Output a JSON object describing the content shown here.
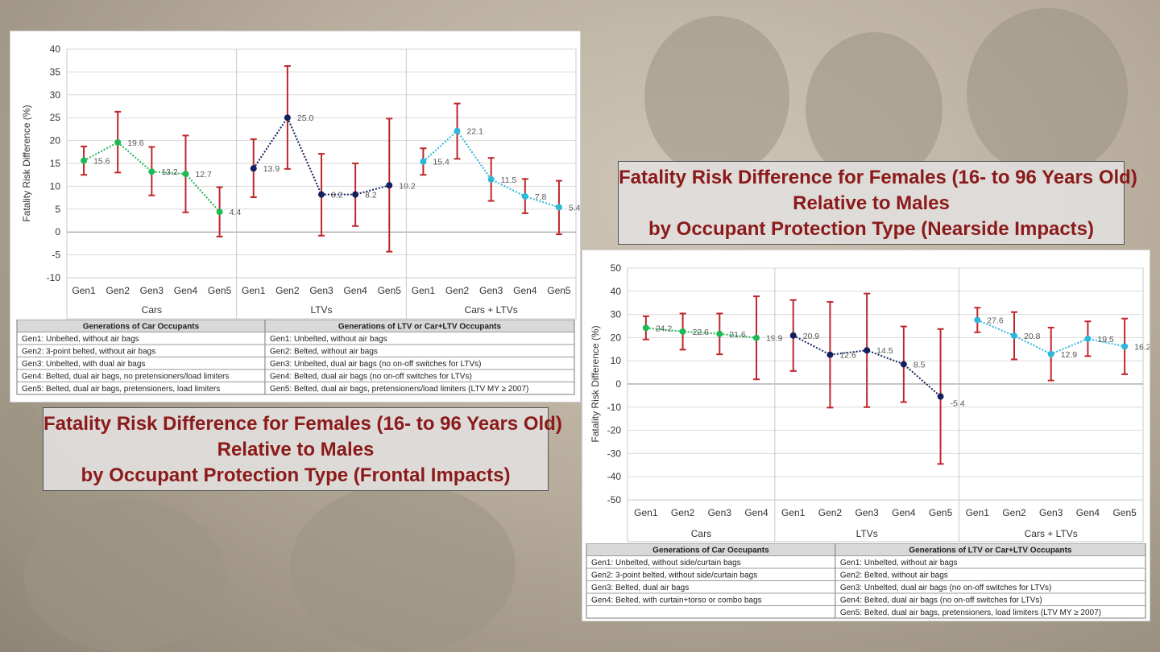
{
  "colors": {
    "cars": "#1db954",
    "ltvs": "#14205e",
    "both": "#2cb8d8",
    "error_bar": "#c0262c",
    "grid": "#d9d9d9"
  },
  "charts": [
    {
      "ylabel": "Fatality Risk Difference (%)",
      "caption": [
        "Fatality Risk Difference for Females (16- to 96 Years Old)",
        "Relative to Males",
        "by Occupant Protection Type (Frontal Impacts)"
      ],
      "table": {
        "headers": [
          "Generations of Car Occupants",
          "Generations of LTV or Car+LTV Occupants"
        ],
        "left": [
          "Gen1: Unbelted, without air bags",
          "Gen2: 3-point belted, without air bags",
          "Gen3: Unbelted, with dual air bags",
          "Gen4: Belted, dual air bags, no pretensioners/load limiters",
          "Gen5: Belted, dual air bags, pretensioners, load limiters"
        ],
        "right": [
          "Gen1: Unbelted, without air bags",
          "Gen2: Belted, without air bags",
          "Gen3: Unbelted, dual air bags (no on-off switches for LTVs)",
          "Gen4: Belted, dual air bags (no on-off switches for LTVs)",
          "Gen5: Belted, dual air bags, pretensioners/load limiters (LTV MY ≥ 2007)"
        ]
      }
    },
    {
      "ylabel": "Fatality Risk Difference (%)",
      "caption": [
        "Fatality Risk Difference for Females (16- to 96 Years Old)",
        "Relative to Males",
        "by Occupant Protection Type (Nearside Impacts)"
      ],
      "table": {
        "headers": [
          "Generations of Car Occupants",
          "Generations of LTV or Car+LTV Occupants"
        ],
        "left": [
          "Gen1: Unbelted, without side/curtain bags",
          "Gen2: 3-point belted, without side/curtain bags",
          "Gen3: Belted, dual air bags",
          "Gen4: Belted, with curtain+torso or combo bags",
          ""
        ],
        "right": [
          "Gen1: Unbelted, without air bags",
          "Gen2: Belted, without air bags",
          "Gen3: Unbelted, dual air bags (no on-off switches for LTVs)",
          "Gen4: Belted, dual air bags (no on-off switches for LTVs)",
          "Gen5: Belted, dual air bags, pretensioners, load limiters (LTV MY ≥ 2007)"
        ]
      }
    }
  ],
  "chart_data": [
    {
      "type": "line",
      "ylabel": "Fatality Risk Difference (%)",
      "ylim": [
        -10,
        40
      ],
      "yticks": [
        -10,
        -5,
        0,
        5,
        10,
        15,
        20,
        25,
        30,
        35,
        40
      ],
      "groups": [
        {
          "name": "Cars",
          "categories": [
            "Gen1",
            "Gen2",
            "Gen3",
            "Gen4",
            "Gen5"
          ],
          "values": [
            15.6,
            19.6,
            13.2,
            12.7,
            4.4
          ],
          "lower": [
            12.5,
            13.0,
            8.0,
            4.3,
            -1.0
          ],
          "upper": [
            18.7,
            26.3,
            18.6,
            21.1,
            9.8
          ],
          "labels": [
            "15.6",
            "19.6",
            "13.2",
            "12.7",
            "4.4"
          ]
        },
        {
          "name": "LTVs",
          "categories": [
            "Gen1",
            "Gen2",
            "Gen3",
            "Gen4",
            "Gen5"
          ],
          "values": [
            13.9,
            25.0,
            8.2,
            8.2,
            10.2
          ],
          "lower": [
            7.6,
            13.8,
            -0.8,
            1.3,
            -4.3
          ],
          "upper": [
            20.3,
            36.3,
            17.1,
            15.0,
            24.8
          ],
          "labels": [
            "13.9",
            "25.0",
            "8.2",
            "8.2",
            "10.2"
          ]
        },
        {
          "name": "Cars + LTVs",
          "categories": [
            "Gen1",
            "Gen2",
            "Gen3",
            "Gen4",
            "Gen5"
          ],
          "values": [
            15.4,
            22.1,
            11.5,
            7.8,
            5.4
          ],
          "lower": [
            12.5,
            16.0,
            6.8,
            4.1,
            -0.5
          ],
          "upper": [
            18.3,
            28.1,
            16.2,
            11.6,
            11.2
          ],
          "labels": [
            "15.4",
            "22.1",
            "11.5",
            "7.8",
            "5.4"
          ]
        }
      ]
    },
    {
      "type": "line",
      "ylabel": "Fatality Risk Difference (%)",
      "ylim": [
        -50,
        50
      ],
      "yticks": [
        -50,
        -40,
        -30,
        -20,
        -10,
        0,
        10,
        20,
        30,
        40,
        50
      ],
      "groups": [
        {
          "name": "Cars",
          "categories": [
            "Gen1",
            "Gen2",
            "Gen3",
            "Gen4"
          ],
          "values": [
            24.2,
            22.6,
            21.6,
            19.9
          ],
          "lower": [
            19.2,
            14.8,
            12.8,
            2.0
          ],
          "upper": [
            29.2,
            30.4,
            30.4,
            37.8
          ],
          "labels": [
            "24.2",
            "22.6",
            "21.6",
            "19.9"
          ]
        },
        {
          "name": "LTVs",
          "categories": [
            "Gen1",
            "Gen2",
            "Gen3",
            "Gen4",
            "Gen5"
          ],
          "values": [
            20.9,
            12.6,
            14.5,
            8.5,
            -5.4
          ],
          "lower": [
            5.6,
            -10.2,
            -10.0,
            -7.8,
            -34.5
          ],
          "upper": [
            36.2,
            35.4,
            39.0,
            24.8,
            23.7
          ],
          "labels": [
            "20.9",
            "12.6",
            "14.5",
            "8.5",
            "-5.4"
          ]
        },
        {
          "name": "Cars + LTVs",
          "categories": [
            "Gen1",
            "Gen2",
            "Gen3",
            "Gen4",
            "Gen5"
          ],
          "values": [
            27.6,
            20.8,
            12.9,
            19.5,
            16.2
          ],
          "lower": [
            22.3,
            10.6,
            1.5,
            12.0,
            4.2
          ],
          "upper": [
            32.9,
            31.0,
            24.3,
            27.0,
            28.2
          ],
          "labels": [
            "27.6",
            "20.8",
            "12.9",
            "19.5",
            "16.2"
          ]
        }
      ]
    }
  ]
}
